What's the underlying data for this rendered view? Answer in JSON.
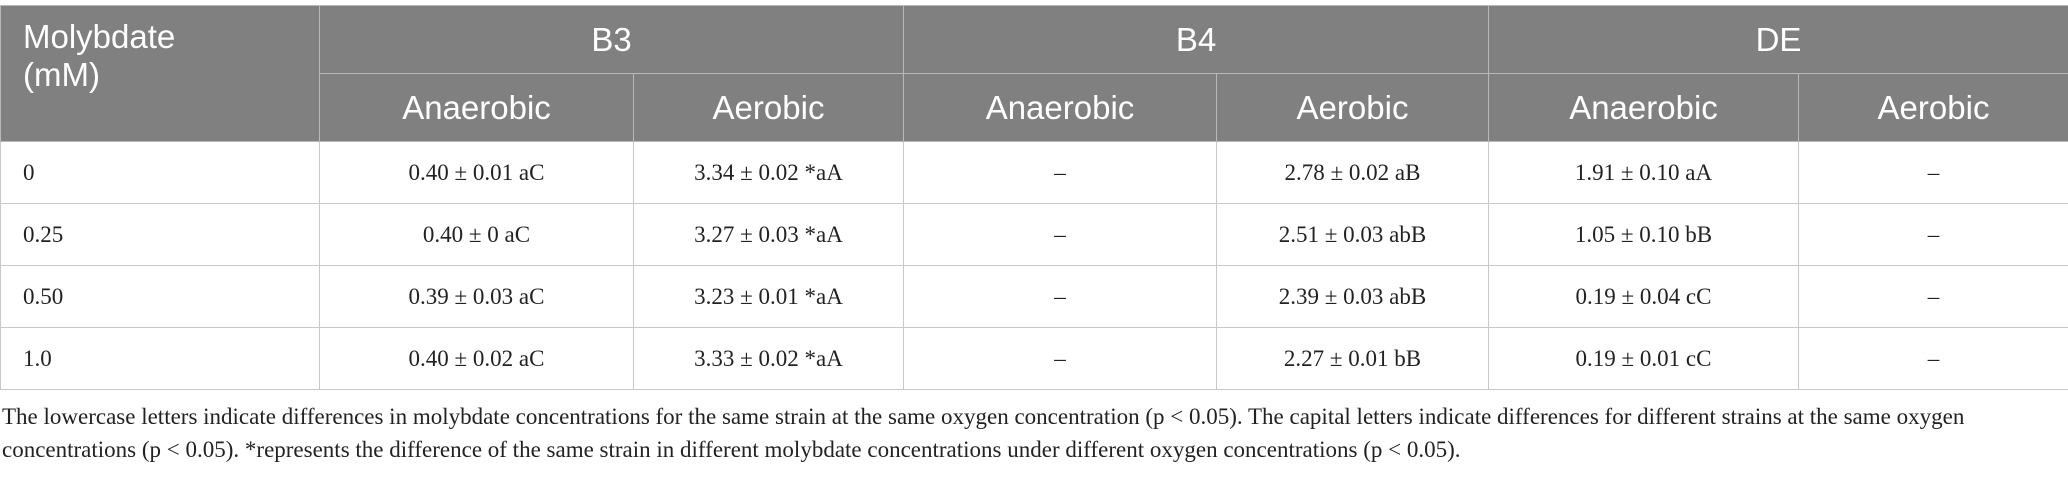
{
  "table": {
    "corner": "Molybdate (mM)",
    "groups": [
      "B3",
      "B4",
      "DE"
    ],
    "subheaders": [
      "Anaerobic",
      "Aerobic",
      "Anaerobic",
      "Aerobic",
      "Anaerobic",
      "Aerobic"
    ],
    "rows": [
      [
        "0",
        "0.40 ± 0.01 aC",
        "3.34 ± 0.02 *aA",
        "–",
        "2.78 ± 0.02 aB",
        "1.91 ± 0.10 aA",
        "–"
      ],
      [
        "0.25",
        "0.40 ± 0 aC",
        "3.27 ± 0.03 *aA",
        "–",
        "2.51 ± 0.03 abB",
        "1.05 ± 0.10 bB",
        "–"
      ],
      [
        "0.50",
        "0.39 ± 0.03 aC",
        "3.23 ± 0.01 *aA",
        "–",
        "2.39 ± 0.03 abB",
        "0.19 ± 0.04 cC",
        "–"
      ],
      [
        "1.0",
        "0.40 ± 0.02 aC",
        "3.33 ± 0.02 *aA",
        "–",
        "2.27 ± 0.01 bB",
        "0.19 ± 0.01 cC",
        "–"
      ]
    ]
  },
  "footnote": "The lowercase letters indicate differences in molybdate concentrations for the same strain at the same oxygen concentration (p < 0.05). The capital letters indicate differences for different strains at the same oxygen concentrations (p < 0.05). *represents the difference of the same strain in different molybdate concentrations under different oxygen concentrations (p < 0.05)."
}
